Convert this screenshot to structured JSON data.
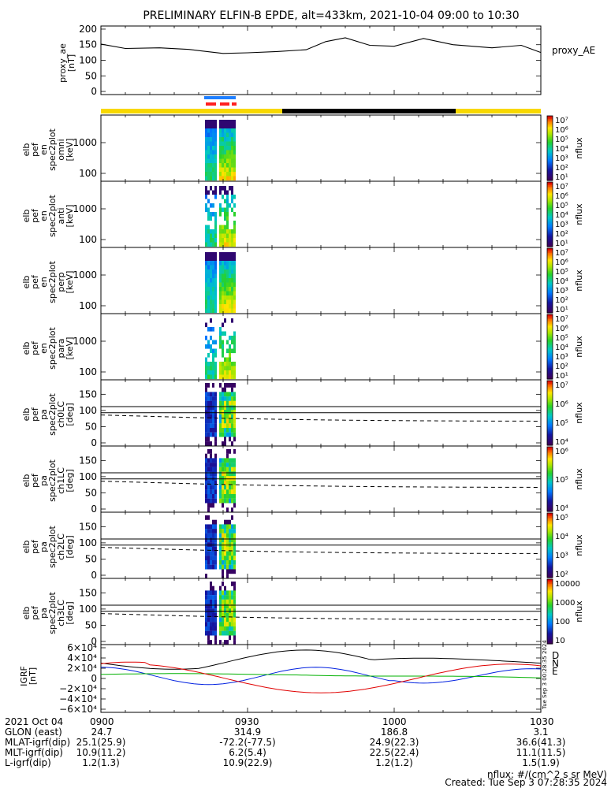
{
  "title": "PRELIMINARY ELFIN-B EPDE, alt=433km, 2021-10-04 09:00 to 10:30",
  "colors": {
    "indicator_yellow": "#f8d800",
    "indicator_black": "#000000",
    "indicator_blue": "#1e7fff",
    "indicator_red": "#ff2020"
  },
  "chart_data": [
    {
      "type": "line",
      "id": "proxy_ae",
      "ylabel_lines": [
        "proxy_ae",
        "[nT]"
      ],
      "legend": "proxy_AE",
      "ylim": [
        -10,
        210
      ],
      "yticks": [
        "200",
        "150",
        "100",
        "50",
        "0"
      ],
      "x_minutes": [
        0,
        5,
        12,
        18,
        25,
        30,
        36,
        42,
        46,
        50,
        55,
        60,
        66,
        72,
        80,
        86,
        90
      ],
      "values": [
        152,
        138,
        140,
        135,
        122,
        124,
        128,
        134,
        160,
        172,
        148,
        145,
        170,
        150,
        140,
        148,
        125
      ]
    },
    {
      "type": "heatmap",
      "id": "en_omni",
      "ylabel_lines": [
        "elb",
        "pef",
        "en",
        "spec2plot",
        "omni",
        "[keV]"
      ],
      "yticks": [
        "1000",
        "100"
      ],
      "colorbar": {
        "labels": [
          "10⁷",
          "10⁶",
          "10⁵",
          "10⁴",
          "10³",
          "10²",
          "10¹"
        ],
        "label": "nflux"
      }
    },
    {
      "type": "heatmap",
      "id": "en_anti",
      "ylabel_lines": [
        "elb",
        "pef",
        "en",
        "spec2plot",
        "anti",
        "[keV]"
      ],
      "yticks": [
        "1000",
        "100"
      ],
      "colorbar": {
        "labels": [
          "10⁷",
          "10⁶",
          "10⁵",
          "10⁴",
          "10³",
          "10²",
          "10¹"
        ],
        "label": "nflux"
      }
    },
    {
      "type": "heatmap",
      "id": "en_perp",
      "ylabel_lines": [
        "elb",
        "pef",
        "en",
        "spec2plot",
        "perp",
        "[keV]"
      ],
      "yticks": [
        "1000",
        "100"
      ],
      "colorbar": {
        "labels": [
          "10⁷",
          "10⁶",
          "10⁵",
          "10⁴",
          "10³",
          "10²",
          "10¹"
        ],
        "label": "nflux"
      }
    },
    {
      "type": "heatmap",
      "id": "en_para",
      "ylabel_lines": [
        "elb",
        "pef",
        "en",
        "spec2plot",
        "para",
        "[keV]"
      ],
      "yticks": [
        "1000",
        "100"
      ],
      "colorbar": {
        "labels": [
          "10⁷",
          "10⁶",
          "10⁵",
          "10⁴",
          "10³",
          "10²",
          "10¹"
        ],
        "label": "nflux"
      }
    },
    {
      "type": "heatmap",
      "id": "pa_ch0",
      "ylabel_lines": [
        "elb",
        "pef",
        "pa",
        "spec2plot",
        "ch0LC",
        "[deg]"
      ],
      "yticks": [
        "150",
        "100",
        "50",
        "0"
      ],
      "colorbar": {
        "labels": [
          "10⁷",
          "10⁶",
          "10⁵",
          "10⁴"
        ],
        "label": "nflux"
      }
    },
    {
      "type": "heatmap",
      "id": "pa_ch1",
      "ylabel_lines": [
        "elb",
        "pef",
        "pa",
        "spec2plot",
        "ch1LC",
        "[deg]"
      ],
      "yticks": [
        "150",
        "100",
        "50",
        "0"
      ],
      "colorbar": {
        "labels": [
          "10⁶",
          "10⁵",
          "10⁴"
        ],
        "label": "nflux"
      }
    },
    {
      "type": "heatmap",
      "id": "pa_ch2",
      "ylabel_lines": [
        "elb",
        "pef",
        "pa",
        "spec2plot",
        "ch2LC",
        "[deg]"
      ],
      "yticks": [
        "150",
        "100",
        "50",
        "0"
      ],
      "colorbar": {
        "labels": [
          "10⁵",
          "10⁴",
          "10³",
          "10²"
        ],
        "label": "nflux"
      }
    },
    {
      "type": "heatmap",
      "id": "pa_ch3",
      "ylabel_lines": [
        "elb",
        "pef",
        "pa",
        "spec2plot",
        "ch3LC",
        "[deg]"
      ],
      "yticks": [
        "150",
        "100",
        "50",
        "0"
      ],
      "colorbar": {
        "labels": [
          "10000",
          "1000",
          "100",
          "10"
        ],
        "label": "nflux"
      }
    },
    {
      "type": "line",
      "id": "igrf",
      "ylabel_lines": [
        "IGRF",
        "[nT]"
      ],
      "yticks": [
        "6×10⁴",
        "4×10⁴",
        "2×10⁴",
        "0",
        "−2×10⁴",
        "−4×10⁴",
        "−6×10⁴"
      ],
      "legend": [
        "D",
        "N",
        "E"
      ],
      "side_text": "Tue Sep  3 00:28:35 2024"
    }
  ],
  "footer": {
    "xtick_labels": [
      "0900",
      "0930",
      "1000",
      "1030"
    ],
    "rows": [
      {
        "label": "2021 Oct 04",
        "values": [
          "0900",
          "0930",
          "1000",
          "1030"
        ]
      },
      {
        "label": "GLON (east)",
        "values": [
          "24.7",
          "314.9",
          "186.8",
          "3.1"
        ]
      },
      {
        "label": "MLAT-igrf(dip)",
        "values": [
          "25.1(25.9)",
          "-72.2(-77.5)",
          "24.9(22.3)",
          "36.6(41.3)"
        ]
      },
      {
        "label": "MLT-igrf(dip)",
        "values": [
          "10.9(11.2)",
          "6.2(5.4)",
          "22.5(22.4)",
          "11.1(11.5)"
        ]
      },
      {
        "label": "L-igrf(dip)",
        "values": [
          "1.2(1.3)",
          "10.9(22.9)",
          "1.2(1.2)",
          "1.5(1.9)"
        ]
      }
    ],
    "units_note": "nflux: #/(cm^2 s sr MeV)",
    "created": "Created: Tue Sep  3 07:28:35 2024"
  }
}
